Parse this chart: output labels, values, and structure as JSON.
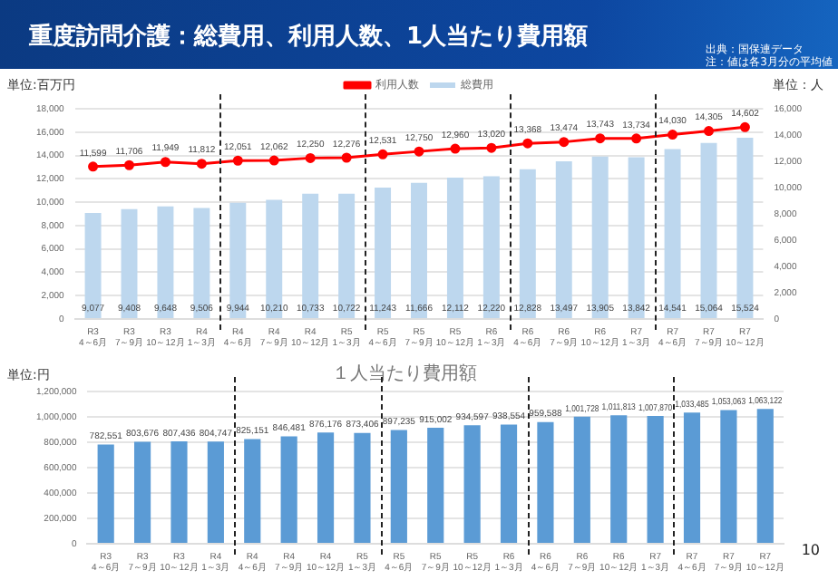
{
  "chart_data": [
    {
      "type": "bar",
      "title": "重度訪問介護：総費用、利用人数、1人当たり費用額",
      "annotations": [
        "出典：国保連データ",
        "注：値は各3月分の平均値"
      ],
      "ylabel": "単位:百万円",
      "y2label": "単位：人",
      "categories": [
        "R3\n4～6月",
        "R3\n7～9月",
        "R3\n10～12月",
        "R4\n1～3月",
        "R4\n4～6月",
        "R4\n7～9月",
        "R4\n10～12月",
        "R5\n1～3月",
        "R5\n4～6月",
        "R5\n7～9月",
        "R5\n10～12月",
        "R6\n1～3月",
        "R6\n4～6月",
        "R6\n7～9月",
        "R6\n10～12月",
        "R7\n1～3月",
        "R7\n4～6月",
        "R7\n7～9月",
        "R7\n10～12月"
      ],
      "series": [
        {
          "name": "総費用",
          "type": "bar",
          "color": "#bdd7ee",
          "values": [
            9077,
            9408,
            9648,
            9506,
            9944,
            10210,
            10733,
            10722,
            11243,
            11666,
            12112,
            12220,
            12828,
            13497,
            13905,
            13842,
            14541,
            15064,
            15524
          ],
          "value_labels": [
            "9,077",
            "9,408",
            "9,648",
            "9,506",
            "9,944",
            "10,210",
            "10,733",
            "10,722",
            "11,243",
            "11,666",
            "12,112",
            "12,220",
            "12,828",
            "13,497",
            "13,905",
            "13,842",
            "14,541",
            "15,064",
            "15,524"
          ]
        },
        {
          "name": "利用人数",
          "type": "line",
          "axis": "y2",
          "color": "#ff0000",
          "marker": "circle",
          "values": [
            11599,
            11706,
            11949,
            11812,
            12051,
            12062,
            12250,
            12276,
            12531,
            12750,
            12960,
            13020,
            13368,
            13474,
            13743,
            13734,
            14030,
            14305,
            14602
          ],
          "value_labels": [
            "11,599",
            "11,706",
            "11,949",
            "11,812",
            "12,051",
            "12,062",
            "12,250",
            "12,276",
            "12,531",
            "12,750",
            "12,960",
            "13,020",
            "13,368",
            "13,474",
            "13,743",
            "13,734",
            "14,030",
            "14,305",
            "14,602"
          ]
        }
      ],
      "ylim": [
        0,
        18000
      ],
      "yticks": [
        0,
        {
          "value": 2000,
          "label": "2,000"
        },
        {
          "value": 4000,
          "label": "4,000"
        },
        {
          "value": 6000,
          "label": "6,000"
        },
        {
          "value": 8000,
          "label": "8,000"
        },
        {
          "value": 10000,
          "label": "10,000"
        },
        {
          "value": 12000,
          "label": "12,000"
        },
        {
          "value": 14000,
          "label": "14,000"
        },
        {
          "value": 16000,
          "label": "16,000"
        },
        {
          "value": 18000,
          "label": "18,000"
        }
      ],
      "y2lim": [
        0,
        16000
      ],
      "y2ticks": [
        0,
        {
          "value": 2000,
          "label": "2,000"
        },
        {
          "value": 4000,
          "label": "4,000"
        },
        {
          "value": 6000,
          "label": "6,000"
        },
        {
          "value": 8000,
          "label": "8,000"
        },
        {
          "value": 10000,
          "label": "10,000"
        },
        {
          "value": 12000,
          "label": "12,000"
        },
        {
          "value": 14000,
          "label": "14,000"
        },
        {
          "value": 16000,
          "label": "16,000"
        }
      ],
      "grid": "y",
      "legend": "top"
    },
    {
      "type": "bar",
      "title": "１人当たり費用額",
      "ylabel": "単位:円",
      "annotations": [
        "10"
      ],
      "categories": [
        "R3\n4～6月",
        "R3\n7～9月",
        "R3\n10～12月",
        "R4\n1～3月",
        "R4\n4～6月",
        "R4\n7～9月",
        "R4\n10～12月",
        "R5\n1～3月",
        "R5\n4～6月",
        "R5\n7～9月",
        "R5\n10～12月",
        "R6\n1～3月",
        "R6\n4～6月",
        "R6\n7～9月",
        "R6\n10～12月",
        "R7\n1～3月",
        "R7\n4～6月",
        "R7\n7～9月",
        "R7\n10～12月"
      ],
      "values": [
        782551,
        803676,
        807436,
        804747,
        825151,
        846481,
        876176,
        873406,
        897235,
        915002,
        934597,
        938554,
        959588,
        1001728,
        1011813,
        1007870,
        1033485,
        1053063,
        1063122
      ],
      "value_labels": [
        "782,551",
        "803,676",
        "807,436",
        "804,747",
        "825,151",
        "846,481",
        "876,176",
        "873,406",
        "897,235",
        "915,002",
        "934,597",
        "938,554",
        "959,588",
        "1,001,728",
        "1,011,813",
        "1,007,870",
        "1,033,485",
        "1,053,063",
        "1,063,122"
      ],
      "color": "#5b9bd5",
      "ylim": [
        0,
        1200000
      ],
      "yticks": [
        0,
        {
          "value": 200000,
          "label": "200,000"
        },
        {
          "value": 400000,
          "label": "400,000"
        },
        {
          "value": 600000,
          "label": "600,000"
        },
        {
          "value": 800000,
          "label": "800,000"
        },
        {
          "value": 1000000,
          "label": "1,000,000"
        },
        {
          "value": 1200000,
          "label": "1,200,000"
        }
      ],
      "grid": "y"
    }
  ]
}
